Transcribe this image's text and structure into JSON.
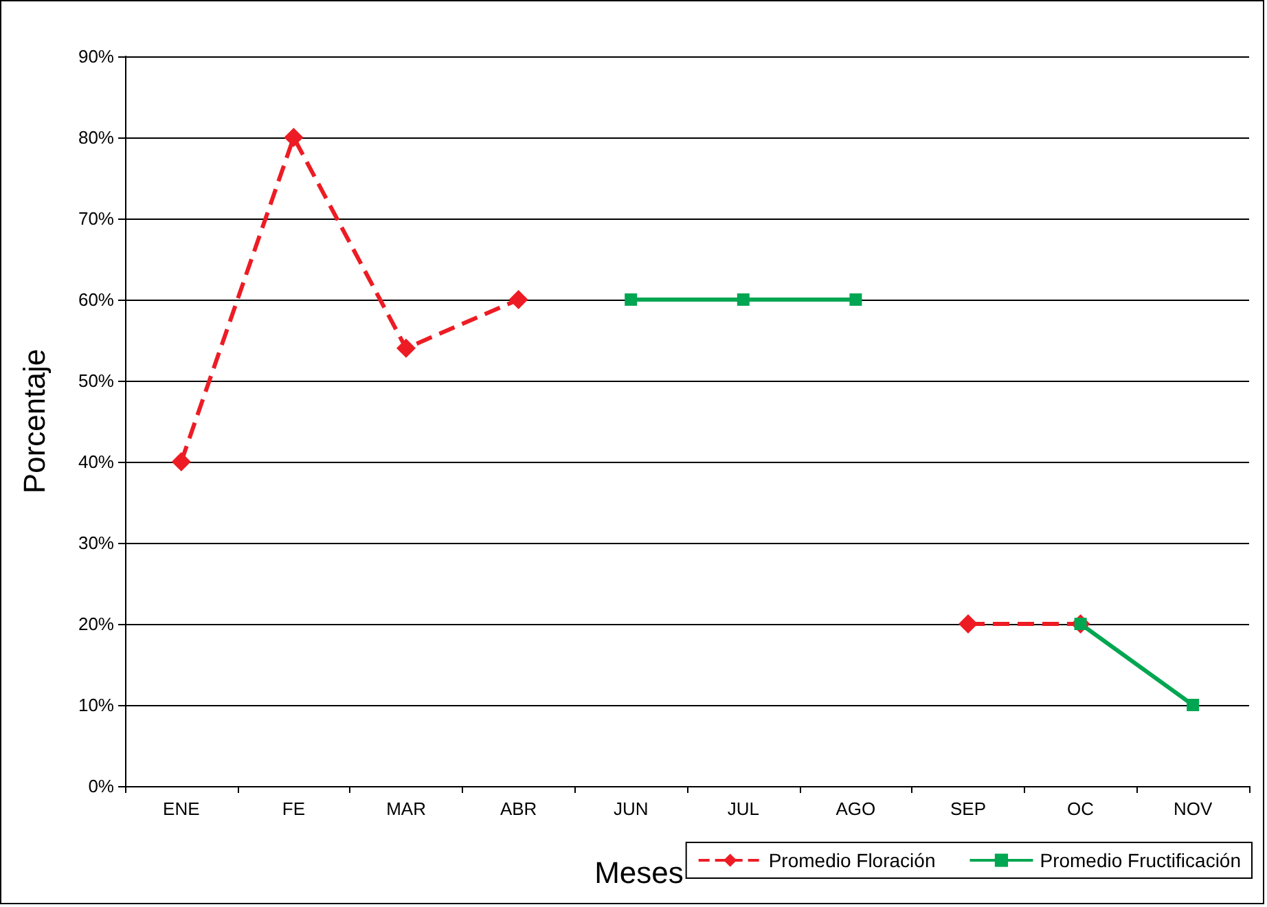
{
  "chart_data": {
    "type": "line",
    "xlabel": "Meses",
    "ylabel": "Porcentaje",
    "categories": [
      "ENE",
      "FE",
      "MAR",
      "ABR",
      "JUN",
      "JUL",
      "AGO",
      "SEP",
      "OC",
      "NOV"
    ],
    "series": [
      {
        "name": "Promedio Floración",
        "color": "#ed1c24",
        "marker": "diamond",
        "line_style": "dashed",
        "values": [
          40,
          80,
          54,
          60,
          null,
          null,
          null,
          20,
          20,
          null
        ]
      },
      {
        "name": "Promedio Fructificación",
        "color": "#00a651",
        "marker": "square",
        "line_style": "solid",
        "values": [
          null,
          null,
          null,
          null,
          60,
          60,
          60,
          null,
          20,
          10
        ]
      }
    ],
    "ylim": [
      0,
      90
    ],
    "yticks": [
      {
        "value": 0,
        "label": "0%"
      },
      {
        "value": 10,
        "label": "10%"
      },
      {
        "value": 20,
        "label": "20%"
      },
      {
        "value": 30,
        "label": "30%"
      },
      {
        "value": 40,
        "label": "40%"
      },
      {
        "value": 50,
        "label": "50%"
      },
      {
        "value": 60,
        "label": "60%"
      },
      {
        "value": 70,
        "label": "70%"
      },
      {
        "value": 80,
        "label": "80%"
      },
      {
        "value": 90,
        "label": "90%"
      }
    ],
    "grid": "y",
    "legend": "bottom right"
  }
}
